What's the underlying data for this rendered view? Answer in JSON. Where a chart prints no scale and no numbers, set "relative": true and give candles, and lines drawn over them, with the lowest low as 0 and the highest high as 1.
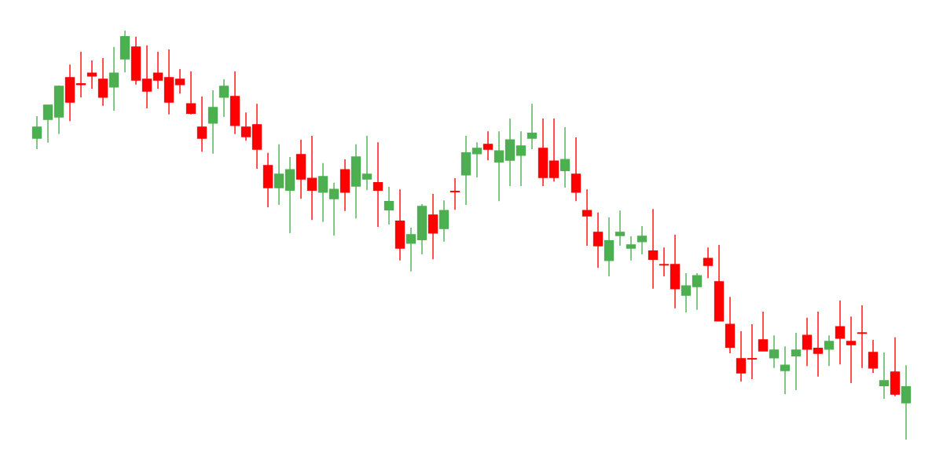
{
  "chart_data": {
    "type": "candlestick",
    "relative": true,
    "categories": [
      null,
      null,
      null,
      null,
      null,
      null,
      null,
      null,
      null,
      null,
      null,
      null,
      null,
      null,
      null,
      null,
      null,
      null,
      null,
      null,
      null,
      null,
      null,
      null,
      null,
      null,
      null,
      null,
      null,
      null,
      null,
      null,
      null,
      null,
      null,
      null,
      null,
      null,
      null,
      null,
      null,
      null,
      null,
      null,
      null,
      null,
      null,
      null,
      null,
      null,
      null,
      null,
      null,
      null,
      null,
      null,
      null,
      null,
      null,
      null,
      null,
      null,
      null,
      null,
      null,
      null,
      null,
      null,
      null,
      null,
      null,
      null,
      null,
      null,
      null,
      null,
      null,
      null,
      null,
      null
    ],
    "ohlc": [
      [
        0.737,
        0.791,
        0.71,
        0.764
      ],
      [
        0.783,
        0.818,
        0.726,
        0.818
      ],
      [
        0.789,
        0.866,
        0.747,
        0.864
      ],
      [
        0.885,
        0.917,
        0.779,
        0.825
      ],
      [
        0.87,
        0.948,
        0.837,
        0.868
      ],
      [
        0.896,
        0.927,
        0.858,
        0.889
      ],
      [
        0.881,
        0.933,
        0.816,
        0.837
      ],
      [
        0.862,
        0.96,
        0.804,
        0.896
      ],
      [
        0.931,
        1.0,
        0.898,
        0.985
      ],
      [
        0.96,
        0.985,
        0.868,
        0.879
      ],
      [
        0.881,
        0.964,
        0.81,
        0.852
      ],
      [
        0.896,
        0.948,
        0.858,
        0.879
      ],
      [
        0.885,
        0.954,
        0.795,
        0.825
      ],
      [
        0.881,
        0.906,
        0.846,
        0.868
      ],
      [
        0.821,
        0.9,
        0.795,
        0.798
      ],
      [
        0.764,
        0.839,
        0.704,
        0.737
      ],
      [
        0.774,
        0.854,
        0.699,
        0.812
      ],
      [
        0.837,
        0.881,
        0.789,
        0.864
      ],
      [
        0.839,
        0.9,
        0.747,
        0.768
      ],
      [
        0.764,
        0.8,
        0.731,
        0.741
      ],
      [
        0.77,
        0.821,
        0.662,
        0.71
      ],
      [
        0.67,
        0.701,
        0.568,
        0.616
      ],
      [
        0.616,
        0.722,
        0.574,
        0.649
      ],
      [
        0.61,
        0.691,
        0.505,
        0.66
      ],
      [
        0.697,
        0.733,
        0.589,
        0.637
      ],
      [
        0.639,
        0.743,
        0.537,
        0.61
      ],
      [
        0.605,
        0.676,
        0.532,
        0.643
      ],
      [
        0.589,
        0.628,
        0.499,
        0.612
      ],
      [
        0.66,
        0.685,
        0.559,
        0.605
      ],
      [
        0.62,
        0.722,
        0.541,
        0.691
      ],
      [
        0.637,
        0.743,
        0.61,
        0.649
      ],
      [
        0.628,
        0.727,
        0.52,
        0.61
      ],
      [
        0.562,
        0.618,
        0.526,
        0.582
      ],
      [
        0.534,
        0.612,
        0.438,
        0.468
      ],
      [
        0.48,
        0.518,
        0.411,
        0.501
      ],
      [
        0.489,
        0.576,
        0.453,
        0.57
      ],
      [
        0.549,
        0.601,
        0.441,
        0.505
      ],
      [
        0.516,
        0.585,
        0.484,
        0.56
      ],
      [
        0.607,
        0.639,
        0.562,
        0.606
      ],
      [
        0.647,
        0.743,
        0.574,
        0.701
      ],
      [
        0.699,
        0.727,
        0.641,
        0.712
      ],
      [
        0.722,
        0.754,
        0.683,
        0.71
      ],
      [
        0.679,
        0.754,
        0.583,
        0.706
      ],
      [
        0.683,
        0.785,
        0.62,
        0.733
      ],
      [
        0.695,
        0.754,
        0.62,
        0.718
      ],
      [
        0.737,
        0.821,
        0.71,
        0.749
      ],
      [
        0.712,
        0.785,
        0.62,
        0.641
      ],
      [
        0.681,
        0.785,
        0.631,
        0.641
      ],
      [
        0.658,
        0.764,
        0.616,
        0.685
      ],
      [
        0.649,
        0.739,
        0.583,
        0.605
      ],
      [
        0.56,
        0.612,
        0.474,
        0.547
      ],
      [
        0.507,
        0.555,
        0.42,
        0.474
      ],
      [
        0.438,
        0.543,
        0.399,
        0.486
      ],
      [
        0.499,
        0.56,
        0.474,
        0.507
      ],
      [
        0.468,
        0.497,
        0.438,
        0.476
      ],
      [
        0.484,
        0.522,
        0.453,
        0.497
      ],
      [
        0.461,
        0.564,
        0.369,
        0.441
      ],
      [
        0.428,
        0.47,
        0.399,
        0.427
      ],
      [
        0.428,
        0.501,
        0.321,
        0.369
      ],
      [
        0.353,
        0.407,
        0.311,
        0.376
      ],
      [
        0.374,
        0.407,
        0.317,
        0.401
      ],
      [
        0.443,
        0.47,
        0.395,
        0.426
      ],
      [
        0.386,
        0.476,
        0.29,
        0.29
      ],
      [
        0.282,
        0.349,
        0.211,
        0.226
      ],
      [
        0.198,
        0.265,
        0.142,
        0.163
      ],
      [
        0.198,
        0.282,
        0.148,
        0.197
      ],
      [
        0.244,
        0.313,
        0.217,
        0.217
      ],
      [
        0.2,
        0.255,
        0.175,
        0.219
      ],
      [
        0.169,
        0.228,
        0.111,
        0.182
      ],
      [
        0.205,
        0.261,
        0.121,
        0.219
      ],
      [
        0.255,
        0.298,
        0.18,
        0.221
      ],
      [
        0.223,
        0.313,
        0.154,
        0.211
      ],
      [
        0.221,
        0.255,
        0.18,
        0.24
      ],
      [
        0.276,
        0.34,
        0.184,
        0.248
      ],
      [
        0.24,
        0.301,
        0.138,
        0.232
      ],
      [
        0.261,
        0.328,
        0.175,
        0.26
      ],
      [
        0.213,
        0.244,
        0.163,
        0.175
      ],
      [
        0.132,
        0.213,
        0.1,
        0.144
      ],
      [
        0.165,
        0.25,
        0.106,
        0.111
      ],
      [
        0.09,
        0.182,
        0.0,
        0.129
      ]
    ],
    "colors": [
      "#4caf50",
      "#4caf50",
      "#4caf50",
      "#ff0000",
      "#ff0000",
      "#ff0000",
      "#ff0000",
      "#4caf50",
      "#4caf50",
      "#ff0000",
      "#ff0000",
      "#ff0000",
      "#ff0000",
      "#ff0000",
      "#ff0000",
      "#ff0000",
      "#4caf50",
      "#4caf50",
      "#ff0000",
      "#ff0000",
      "#ff0000",
      "#ff0000",
      "#4caf50",
      "#4caf50",
      "#ff0000",
      "#ff0000",
      "#4caf50",
      "#4caf50",
      "#ff0000",
      "#4caf50",
      "#4caf50",
      "#ff0000",
      "#4caf50",
      "#ff0000",
      "#4caf50",
      "#4caf50",
      "#ff0000",
      "#4caf50",
      "#ff0000",
      "#4caf50",
      "#4caf50",
      "#ff0000",
      "#4caf50",
      "#4caf50",
      "#4caf50",
      "#4caf50",
      "#ff0000",
      "#ff0000",
      "#4caf50",
      "#ff0000",
      "#ff0000",
      "#ff0000",
      "#4caf50",
      "#4caf50",
      "#4caf50",
      "#4caf50",
      "#ff0000",
      "#ff0000",
      "#ff0000",
      "#4caf50",
      "#4caf50",
      "#ff0000",
      "#ff0000",
      "#ff0000",
      "#ff0000",
      "#ff0000",
      "#ff0000",
      "#4caf50",
      "#4caf50",
      "#4caf50",
      "#ff0000",
      "#ff0000",
      "#4caf50",
      "#ff0000",
      "#ff0000",
      "#ff0000",
      "#ff0000",
      "#4caf50",
      "#ff0000",
      "#4caf50"
    ]
  }
}
